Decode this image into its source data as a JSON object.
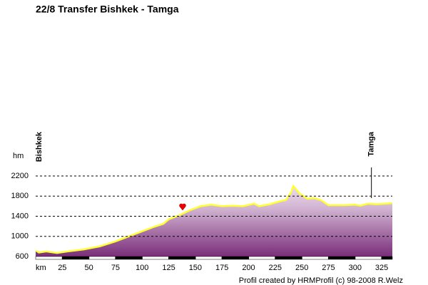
{
  "chart_data": {
    "type": "line",
    "title": "22/8 Transfer Bishkek - Tamga",
    "y_label": "hm",
    "x_label": "km",
    "footer": "Profil created by HRMProfil (c) 98-2008 R.Welz",
    "x": [
      0,
      3,
      10,
      20,
      30,
      45,
      60,
      75,
      90,
      100,
      110,
      120,
      125,
      135,
      145,
      155,
      165,
      175,
      185,
      195,
      205,
      210,
      220,
      230,
      235,
      240,
      242,
      248,
      255,
      262,
      268,
      275,
      290,
      300,
      305,
      312,
      320,
      335
    ],
    "values": [
      720,
      680,
      700,
      670,
      700,
      740,
      800,
      900,
      1020,
      1100,
      1180,
      1250,
      1340,
      1420,
      1520,
      1600,
      1630,
      1600,
      1610,
      1600,
      1650,
      1600,
      1640,
      1700,
      1720,
      1880,
      2000,
      1850,
      1750,
      1760,
      1720,
      1620,
      1620,
      1630,
      1610,
      1650,
      1640,
      1660
    ],
    "color": "#ffff33",
    "places": [
      {
        "label": "Bishkek",
        "km": 0
      },
      {
        "label": "Tamga",
        "km": 312
      }
    ],
    "xlim": [
      0,
      335
    ],
    "ylim": [
      600,
      2200
    ],
    "xticks": [
      25,
      50,
      75,
      100,
      125,
      150,
      175,
      200,
      225,
      250,
      275,
      300,
      325
    ],
    "yticks": [
      600,
      1000,
      1400,
      1800,
      2200
    ],
    "grid": true
  }
}
